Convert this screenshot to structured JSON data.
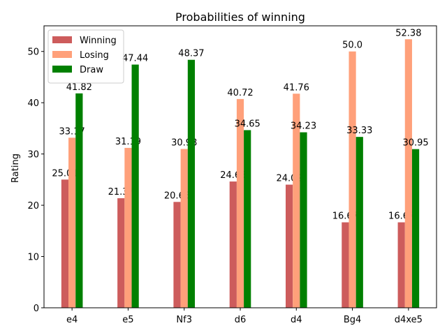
{
  "chart_data": {
    "type": "bar",
    "title": "Probabilities of winning",
    "xlabel": "",
    "ylabel": "Rating",
    "categories": [
      "e4",
      "e5",
      "Nf3",
      "d6",
      "d4",
      "Bg4",
      "d4xe5"
    ],
    "ylim": [
      0,
      55
    ],
    "yticks": [
      0,
      10,
      20,
      30,
      40,
      50
    ],
    "grid": false,
    "legend_position": "upper-left",
    "series": [
      {
        "name": "Winning",
        "color": "#cd5c5c",
        "values": [
          25.01,
          21.37,
          20.65,
          24.63,
          24.02,
          16.67,
          16.67
        ],
        "labels": [
          "25.01",
          "21.37",
          "20.65",
          "24.63",
          "24.02",
          "16.67",
          "16.67"
        ]
      },
      {
        "name": "Losing",
        "color": "#ffa07a",
        "values": [
          33.17,
          31.19,
          30.98,
          40.72,
          41.76,
          50.0,
          52.38
        ],
        "labels": [
          "33.17",
          "31.19",
          "30.98",
          "40.72",
          "41.76",
          "50.0",
          "52.38"
        ]
      },
      {
        "name": "Draw",
        "color": "#008000",
        "values": [
          41.82,
          47.44,
          48.37,
          34.65,
          34.23,
          33.33,
          30.95
        ],
        "labels": [
          "41.82",
          "47.44",
          "48.37",
          "34.65",
          "34.23",
          "33.33",
          "30.95"
        ]
      }
    ]
  }
}
